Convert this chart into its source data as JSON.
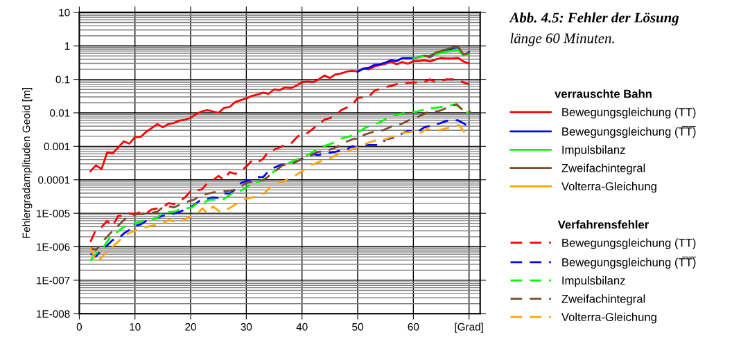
{
  "chart_data": {
    "type": "line",
    "title": "Abb. 4.5: Fehler der Lösung",
    "subtitle": "länge 60 Minuten.",
    "ylabel": "Fehlergradamplituden Geoid [m]",
    "log": "y",
    "grid": true,
    "legend": "right",
    "legend_title": [
      "verrauschte Bahn",
      "Verfahrensfehler"
    ],
    "xlim": [
      0,
      72
    ],
    "xticks": [
      0,
      10,
      20,
      30,
      40,
      50,
      60,
      {
        "value": 70,
        "label": "[Grad]"
      }
    ],
    "ylim": [
      1e-08,
      10
    ],
    "yticks": [
      10,
      1,
      0.1,
      0.01,
      0.001,
      0.0001,
      {
        "value": 1e-05,
        "label": "1E-005"
      },
      {
        "value": 1e-06,
        "label": "1E-006"
      },
      {
        "value": 1e-07,
        "label": "1E-007"
      },
      {
        "value": 1e-08,
        "label": "1E-008"
      }
    ],
    "series": [
      {
        "name": "Bewegungsgleichung (TT)",
        "color": "#ff0000",
        "line_style": "solid",
        "x": [
          2,
          3,
          4,
          5,
          6,
          7,
          8,
          9,
          10,
          11,
          12,
          13,
          14,
          15,
          16,
          17,
          18,
          19,
          20,
          21,
          22,
          23,
          24,
          25,
          26,
          27,
          28,
          29,
          30,
          31,
          32,
          33,
          34,
          35,
          36,
          37,
          38,
          39,
          40,
          41,
          42,
          43,
          44,
          45,
          46,
          47,
          48,
          49,
          50,
          51,
          52,
          53,
          54,
          55,
          56,
          57,
          58,
          59,
          60,
          61,
          62,
          63,
          64,
          65,
          66,
          67,
          68,
          69,
          70
        ],
        "values": [
          0.00018,
          0.00027,
          0.00021,
          0.00065,
          0.00062,
          0.00093,
          0.0014,
          0.0012,
          0.0019,
          0.0019,
          0.0027,
          0.0035,
          0.0046,
          0.0037,
          0.0046,
          0.005,
          0.0059,
          0.0062,
          0.0071,
          0.0093,
          0.011,
          0.012,
          0.011,
          0.01,
          0.014,
          0.015,
          0.021,
          0.024,
          0.027,
          0.032,
          0.035,
          0.04,
          0.037,
          0.05,
          0.048,
          0.058,
          0.055,
          0.065,
          0.083,
          0.087,
          0.083,
          0.1,
          0.13,
          0.11,
          0.14,
          0.15,
          0.17,
          0.18,
          0.17,
          0.21,
          0.2,
          0.24,
          0.27,
          0.29,
          0.34,
          0.28,
          0.33,
          0.29,
          0.35,
          0.35,
          0.37,
          0.34,
          0.39,
          0.44,
          0.42,
          0.42,
          0.44,
          0.34,
          0.3
        ]
      },
      {
        "name": "Bewegungsgleichung (T̅T̅)",
        "color": "#0000ff",
        "line_style": "solid",
        "x": [
          50,
          51,
          52,
          53,
          54,
          55,
          56,
          57,
          58,
          59,
          60,
          61,
          62,
          63,
          64,
          65,
          66,
          67,
          68,
          69,
          70
        ],
        "values": [
          0.17,
          0.21,
          0.22,
          0.27,
          0.28,
          0.32,
          0.37,
          0.35,
          0.43,
          0.43,
          0.43,
          0.46,
          0.51,
          0.46,
          0.6,
          0.68,
          0.76,
          0.83,
          0.93,
          0.53,
          0.65
        ]
      },
      {
        "name": "Impulsbilanz",
        "color": "#00ff00",
        "line_style": "solid",
        "x": [
          60,
          62,
          64,
          66,
          68,
          69,
          70
        ],
        "values": [
          0.43,
          0.49,
          0.56,
          0.68,
          0.76,
          0.52,
          0.58
        ]
      },
      {
        "name": "Zweifachintegral",
        "color": "#804a2a",
        "line_style": "solid",
        "x": [
          62,
          63,
          64,
          66,
          68,
          69,
          70
        ],
        "values": [
          0.51,
          0.48,
          0.63,
          0.8,
          0.97,
          0.56,
          0.62
        ]
      },
      {
        "name": "Volterra-Gleichung",
        "color": "#ffa500",
        "line_style": "solid"
      },
      {
        "name": "Bewegungsgleichung (TT)",
        "color": "#ff0000",
        "line_style": "dashed",
        "x": [
          2,
          3,
          4,
          5,
          6,
          7,
          8,
          9,
          10,
          11,
          12,
          13,
          14,
          15,
          16,
          17,
          18,
          19,
          20,
          21,
          22,
          23,
          24,
          25,
          26,
          27,
          28,
          29,
          30,
          31,
          32,
          33,
          34,
          35,
          37,
          38,
          39,
          40,
          41,
          43,
          44,
          46,
          47,
          49,
          50,
          52,
          53,
          55,
          57,
          59,
          61,
          62,
          63,
          64,
          66,
          68,
          69,
          70
        ],
        "values": [
          1.4e-06,
          3.3e-06,
          3.9e-06,
          5.9e-06,
          4.2e-06,
          8.3e-06,
          8.5e-06,
          1e-05,
          9.5e-06,
          1.1e-05,
          1e-05,
          1.3e-05,
          1.4e-05,
          1.5e-05,
          2e-05,
          1.9e-05,
          2.3e-05,
          3e-05,
          4.6e-05,
          4.9e-05,
          5.1e-05,
          7.9e-05,
          9.8e-05,
          0.00013,
          0.0001,
          0.00017,
          0.00015,
          0.00018,
          0.00025,
          0.00037,
          0.00033,
          0.00042,
          0.00072,
          0.00079,
          0.0011,
          0.0012,
          0.0018,
          0.0025,
          0.0025,
          0.0046,
          0.0062,
          0.0079,
          0.012,
          0.017,
          0.028,
          0.03,
          0.046,
          0.058,
          0.072,
          0.079,
          0.081,
          0.085,
          0.1,
          0.083,
          0.1,
          0.1,
          0.081,
          0.072
        ]
      },
      {
        "name": "Bewegungsgleichung (T̅T̅)",
        "color": "#0000ff",
        "line_style": "dashed",
        "x": [
          2,
          3,
          4,
          5,
          6,
          7,
          8,
          9,
          10,
          11,
          12,
          13,
          14,
          15,
          16,
          17,
          18,
          19,
          20,
          21,
          22,
          23,
          24,
          25,
          26,
          27,
          28,
          29,
          30,
          31,
          32,
          33,
          34,
          35,
          36,
          37,
          39,
          41,
          42,
          43,
          44,
          46,
          47,
          48,
          49,
          50,
          52,
          54,
          55,
          57,
          58,
          59,
          61,
          62,
          64,
          66,
          68,
          69,
          70
        ],
        "values": [
          6.2e-07,
          5.2e-07,
          7.9e-07,
          1.1e-06,
          1.6e-06,
          1.7e-06,
          2.5e-06,
          3.2e-06,
          4.2e-06,
          4.6e-06,
          5.9e-06,
          6.5e-06,
          7.2e-06,
          8.5e-06,
          8.9e-06,
          1e-05,
          1.1e-05,
          1.3e-05,
          1.5e-05,
          2e-05,
          2.6e-05,
          2.7e-05,
          3e-05,
          2.9e-05,
          3.9e-05,
          3.9e-05,
          5.1e-05,
          7.9e-05,
          9.3e-05,
          0.0001,
          0.00012,
          0.00012,
          0.00018,
          0.00023,
          0.00027,
          0.0003,
          0.00037,
          0.00049,
          0.00058,
          0.00055,
          0.00062,
          0.00068,
          0.00076,
          0.00081,
          0.001,
          0.00093,
          0.0011,
          0.0011,
          0.0016,
          0.0019,
          0.0024,
          0.0029,
          0.0029,
          0.0037,
          0.0044,
          0.0058,
          0.006,
          0.0049,
          0.0037
        ]
      },
      {
        "name": "Impulsbilanz",
        "color": "#00ff00",
        "line_style": "dashed",
        "x": [
          2,
          3,
          4,
          5.5,
          8,
          9,
          10.3,
          12,
          14,
          15,
          17,
          18,
          20.3,
          21,
          22,
          23.6,
          25.7,
          27.4,
          29,
          30.3,
          31,
          32,
          33.4,
          34.4,
          36.5,
          40,
          41.6,
          43.2,
          45.3,
          47,
          48.6,
          50.3,
          51.3,
          53.9,
          56.5,
          58.6,
          60.7,
          62.4,
          65.2,
          67.6,
          69.4,
          70.3
        ],
        "values": [
          3.9e-07,
          6.2e-07,
          7.9e-07,
          1.9e-06,
          3.9e-06,
          4.3e-06,
          5.2e-06,
          6.2e-06,
          7.2e-06,
          1.1e-05,
          1.1e-05,
          1.3e-05,
          1.5e-05,
          1.9e-05,
          2e-05,
          2.6e-05,
          2.5e-05,
          3.9e-05,
          4.7e-05,
          6.2e-05,
          8.5e-05,
          8.3e-05,
          0.00011,
          0.00015,
          0.00027,
          0.00046,
          0.00062,
          0.00093,
          0.0012,
          0.0017,
          0.002,
          0.0028,
          0.0035,
          0.0052,
          0.0085,
          0.01,
          0.011,
          0.013,
          0.015,
          0.018,
          0.01,
          0.011
        ]
      },
      {
        "name": "Zweifachintegral",
        "color": "#804a2a",
        "line_style": "dashed",
        "x": [
          2,
          3,
          4.6,
          6,
          8.4,
          10.3,
          12,
          14,
          15.3,
          17,
          18.6,
          20.7,
          21.9,
          24,
          26.5,
          28.2,
          29.9,
          31,
          33.2,
          36.5,
          38.2,
          42.8,
          44.4,
          46.5,
          47.6,
          49.4,
          50.3,
          51.1,
          52.8,
          54.5,
          56.1,
          57.8,
          59.4,
          61,
          62.8,
          64.4,
          66,
          67.8,
          69.4,
          70.3
        ],
        "values": [
          9.3e-07,
          7.9e-07,
          1.7e-06,
          3e-06,
          7.2e-06,
          9.3e-06,
          1e-05,
          1.1e-05,
          1.7e-05,
          1.5e-05,
          2e-05,
          2.6e-05,
          3.4e-05,
          4.2e-05,
          4.6e-05,
          5.1e-05,
          7.9e-05,
          8.5e-05,
          0.0001,
          0.00027,
          0.0003,
          0.00068,
          0.00072,
          0.001,
          0.0013,
          0.0017,
          0.0016,
          0.0022,
          0.0027,
          0.003,
          0.0039,
          0.0046,
          0.0062,
          0.0079,
          0.011,
          0.011,
          0.014,
          0.018,
          0.01,
          0.011
        ]
      },
      {
        "name": "Volterra-Gleichung",
        "color": "#ffa500",
        "line_style": "dashed",
        "x": [
          2,
          3.1,
          5,
          6,
          7.8,
          9.2,
          10.7,
          12.8,
          14.4,
          16.1,
          17.8,
          19.9,
          21.1,
          22.1,
          23,
          24,
          25.3,
          26.9,
          28.6,
          29.9,
          31.1,
          33.2,
          34.8,
          36.5,
          38.2,
          39.8,
          41.5,
          43.2,
          44.9,
          46.5,
          48.2,
          49.8,
          51.5,
          53.2,
          54.9,
          56.5,
          58.2,
          59.9,
          61.1,
          62.4,
          64,
          66.1,
          68.2,
          69.2
        ],
        "values": [
          9.3e-07,
          3.3e-07,
          7.2e-07,
          1e-06,
          1.9e-06,
          2.7e-06,
          3.3e-06,
          4.2e-06,
          4.6e-06,
          6.2e-06,
          5.2e-06,
          7.9e-06,
          9.3e-06,
          1.4e-05,
          1e-05,
          1.6e-05,
          1.1e-05,
          1.4e-05,
          2.1e-05,
          2.7e-05,
          3e-05,
          3.9e-05,
          7.2e-05,
          8.7e-05,
          0.00012,
          0.00017,
          0.00027,
          0.00035,
          0.00042,
          0.00059,
          0.00072,
          0.00093,
          0.0012,
          0.0015,
          0.0016,
          0.002,
          0.0025,
          0.0028,
          0.0024,
          0.0033,
          0.0029,
          0.0035,
          0.0043,
          0.0026
        ]
      }
    ]
  }
}
